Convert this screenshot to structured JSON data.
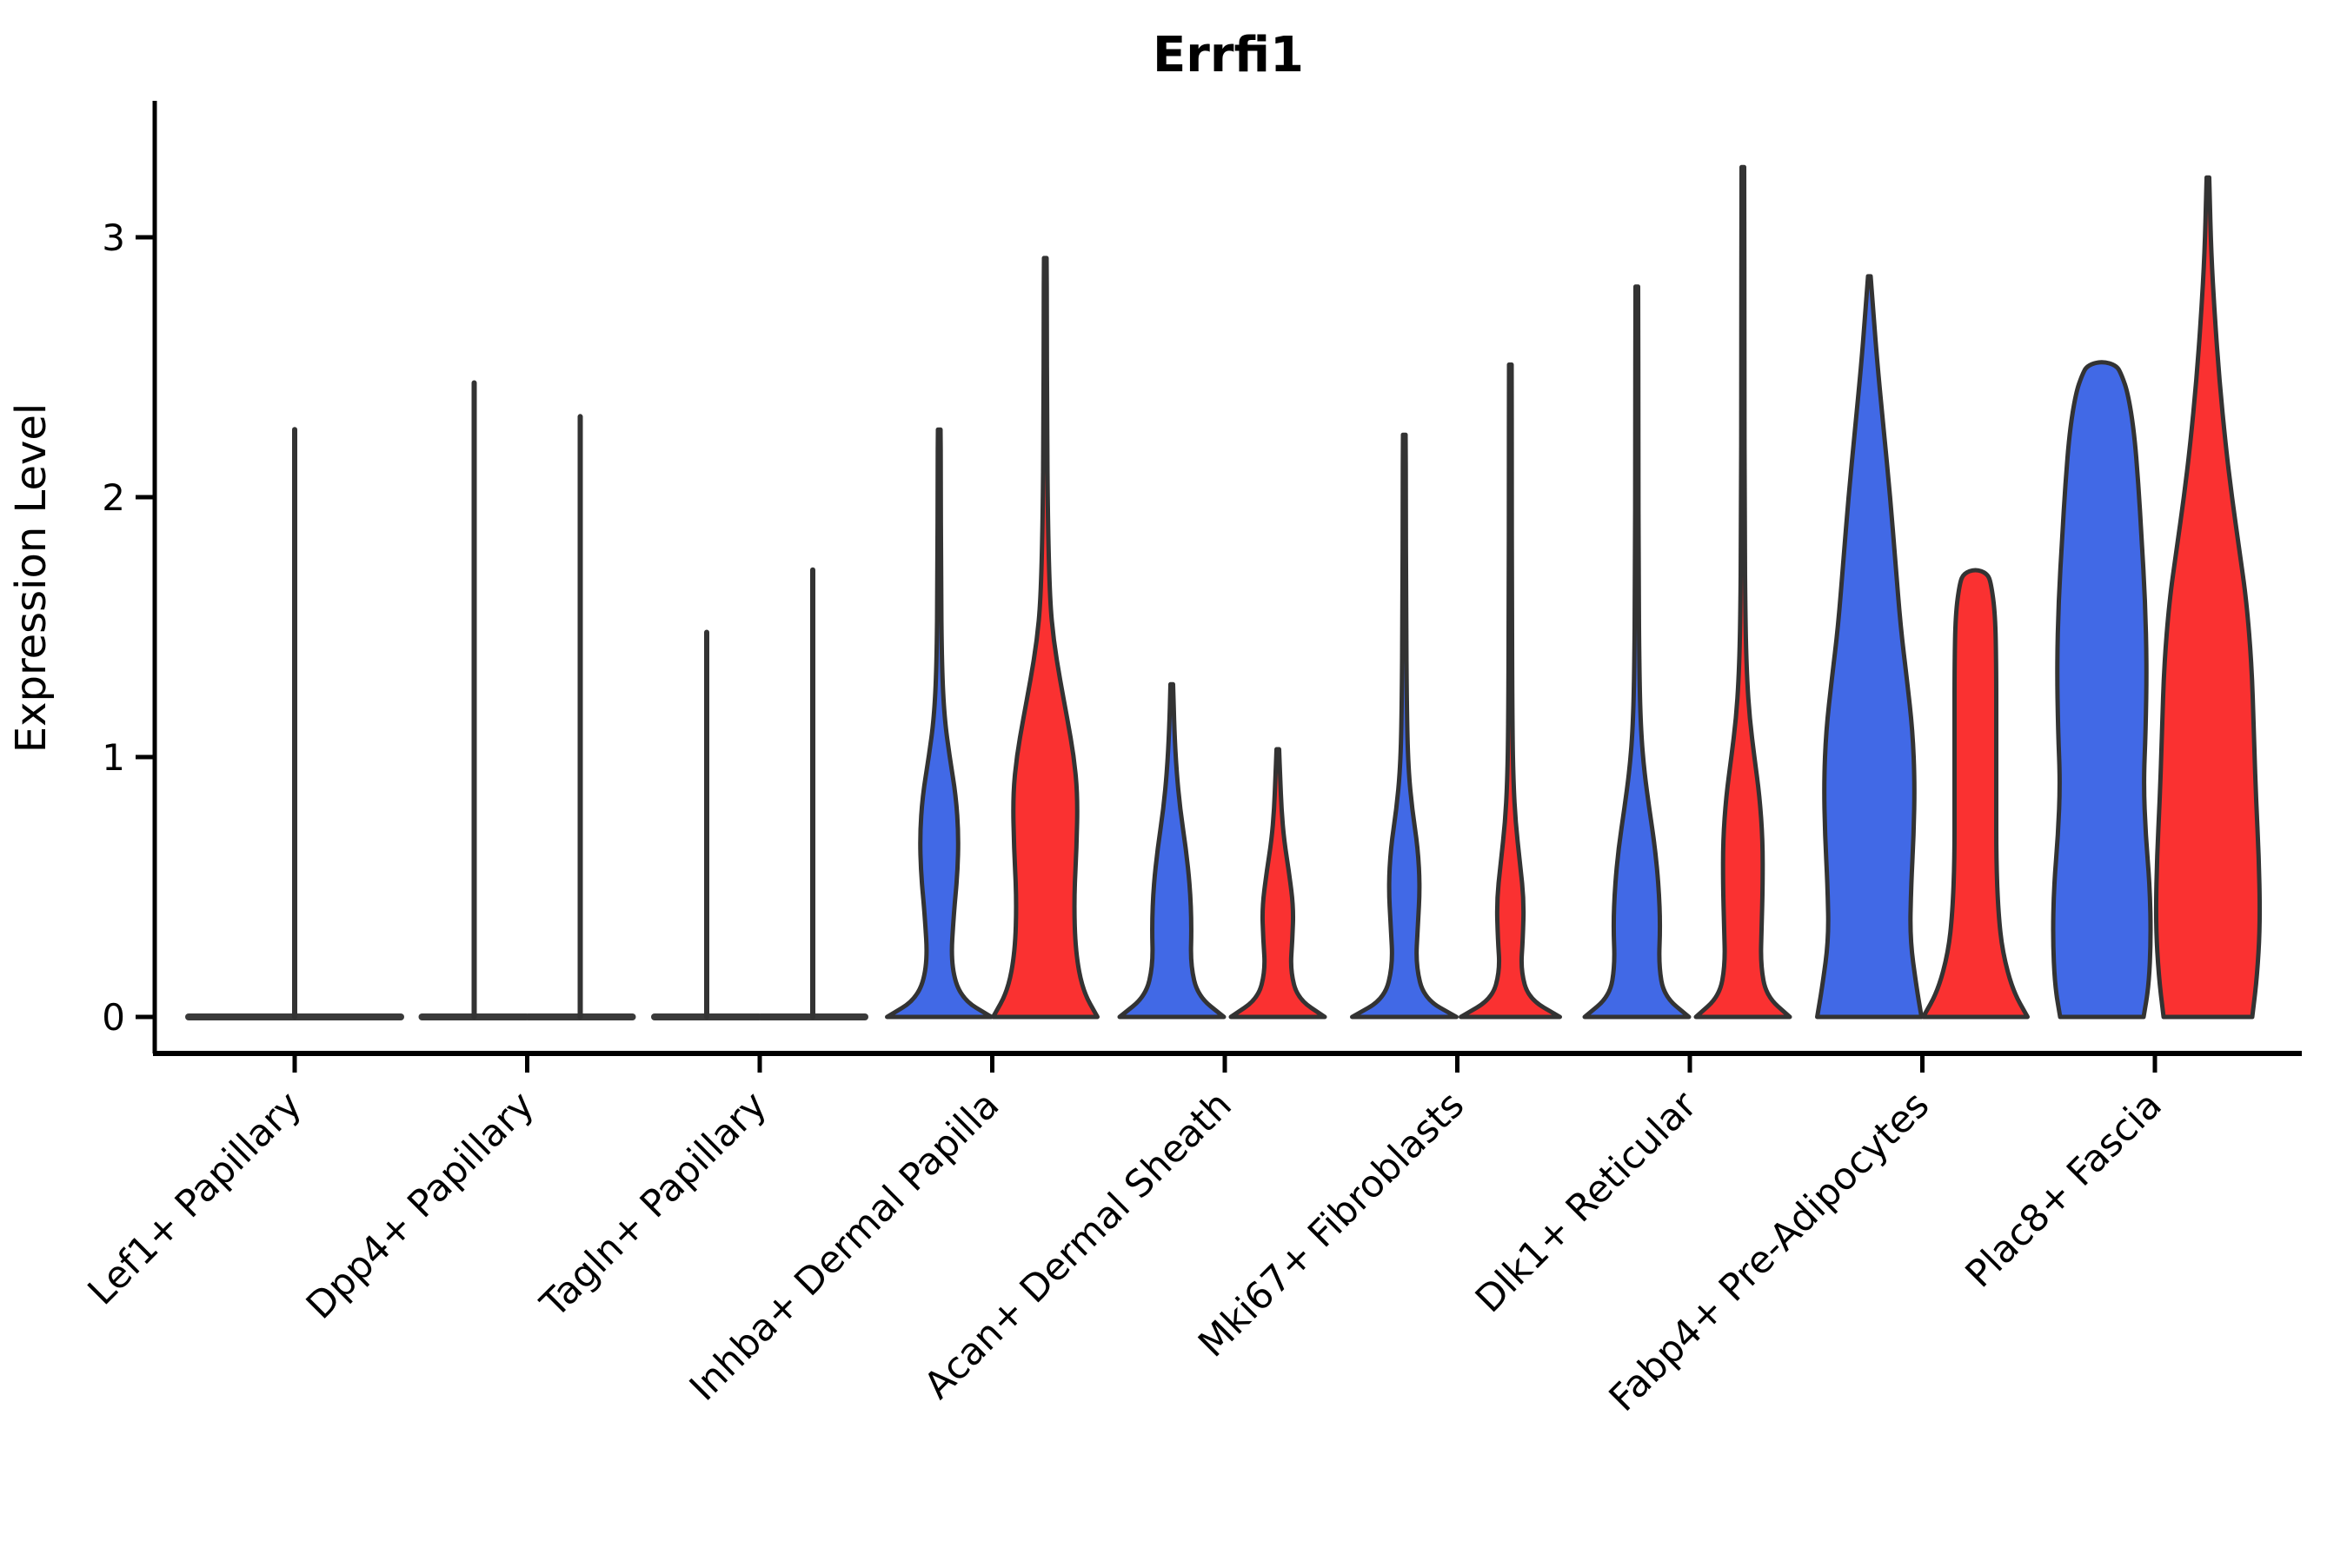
{
  "title": "Errfi1",
  "ylabel": "Expression Level",
  "colors": {
    "blue": "#4169E6",
    "red": "#FA3131",
    "outline": "#333333",
    "flat_line": "#3A3A3A",
    "axis": "#000000",
    "background": "#ffffff"
  },
  "chart_data": {
    "type": "violin",
    "title": "Errfi1",
    "xlabel": "",
    "ylabel": "Expression Level",
    "ylim": [
      -0.15,
      3.45
    ],
    "yticks": [
      "0",
      "1",
      "2",
      "3"
    ],
    "ytick_values": [
      0,
      1,
      2,
      3
    ],
    "x_label_rotation": 45,
    "grid": false,
    "legend": "none",
    "categories": [
      "Lef1+ Papillary",
      "Dpp4+ Papillary",
      "Tagln+ Papillary",
      "Inhba+ Dermal Papilla",
      "Acan+ Dermal Sheath",
      "Mki67+ Fibroblasts",
      "Dlk1+ Reticular",
      "Fabp4+ Pre-Adipocytes",
      "Plac8+ Fascia"
    ],
    "series": [
      {
        "name": "group-blue",
        "color": "#4169E6",
        "max_expression": [
          null,
          2.44,
          1.48,
          2.26,
          1.28,
          2.24,
          2.81,
          2.85,
          2.5
        ]
      },
      {
        "name": "group-red",
        "color": "#FA3131",
        "max_expression": [
          null,
          2.31,
          1.72,
          2.92,
          1.03,
          2.51,
          3.27,
          1.7,
          3.23
        ]
      }
    ],
    "single_violin_note": "Category 1 (Lef1+ Papillary) shows a single centered flat violin with max 2.26",
    "violins": [
      {
        "category": "Lef1+ Papillary",
        "items": [
          {
            "group": "single",
            "flat": true,
            "tip": 2.26,
            "offset": 0,
            "half_width": 122
          }
        ]
      },
      {
        "category": "Dpp4+ Papillary",
        "items": [
          {
            "group": "blue",
            "flat": true,
            "tip": 2.44,
            "offset": -61,
            "half_width": 60
          },
          {
            "group": "red",
            "flat": true,
            "tip": 2.31,
            "offset": 61,
            "half_width": 60
          }
        ]
      },
      {
        "category": "Tagln+ Papillary",
        "items": [
          {
            "group": "blue",
            "flat": true,
            "tip": 1.48,
            "offset": -61,
            "half_width": 60
          },
          {
            "group": "red",
            "flat": true,
            "tip": 1.72,
            "offset": 61,
            "half_width": 60
          }
        ]
      },
      {
        "category": "Inhba+ Dermal Papilla",
        "items": [
          {
            "group": "blue",
            "flat": false,
            "pointed": true,
            "tip": 2.26,
            "offset": -61,
            "half_width": 60,
            "profile": [
              [
                0,
                1
              ],
              [
                0.07,
                0.42
              ],
              [
                0.2,
                0.22
              ],
              [
                0.4,
                0.28
              ],
              [
                0.55,
                0.35
              ],
              [
                0.7,
                0.37
              ],
              [
                0.85,
                0.32
              ],
              [
                1.0,
                0.2
              ],
              [
                1.15,
                0.1
              ],
              [
                1.35,
                0.05
              ],
              [
                1.7,
                0.035
              ],
              [
                2.1,
                0.03
              ]
            ]
          },
          {
            "group": "red",
            "flat": false,
            "pointed": true,
            "tip": 2.92,
            "offset": 61,
            "half_width": 60,
            "profile": [
              [
                0,
                1
              ],
              [
                0.1,
                0.72
              ],
              [
                0.25,
                0.58
              ],
              [
                0.45,
                0.55
              ],
              [
                0.65,
                0.6
              ],
              [
                0.85,
                0.62
              ],
              [
                1.0,
                0.55
              ],
              [
                1.15,
                0.42
              ],
              [
                1.3,
                0.28
              ],
              [
                1.45,
                0.16
              ],
              [
                1.6,
                0.09
              ],
              [
                1.9,
                0.05
              ],
              [
                2.3,
                0.035
              ],
              [
                2.7,
                0.03
              ]
            ]
          }
        ]
      },
      {
        "category": "Acan+ Dermal Sheath",
        "items": [
          {
            "group": "blue",
            "flat": false,
            "pointed": true,
            "tip": 1.28,
            "offset": -61,
            "half_width": 60,
            "profile": [
              [
                0,
                1
              ],
              [
                0.08,
                0.5
              ],
              [
                0.2,
                0.36
              ],
              [
                0.35,
                0.38
              ],
              [
                0.5,
                0.35
              ],
              [
                0.65,
                0.27
              ],
              [
                0.8,
                0.16
              ],
              [
                0.95,
                0.09
              ],
              [
                1.1,
                0.05
              ]
            ]
          },
          {
            "group": "red",
            "flat": false,
            "pointed": true,
            "tip": 1.03,
            "offset": 61,
            "half_width": 60,
            "profile": [
              [
                0,
                0.9
              ],
              [
                0.07,
                0.38
              ],
              [
                0.18,
                0.24
              ],
              [
                0.3,
                0.28
              ],
              [
                0.42,
                0.3
              ],
              [
                0.55,
                0.22
              ],
              [
                0.68,
                0.12
              ],
              [
                0.8,
                0.07
              ],
              [
                0.92,
                0.045
              ]
            ]
          }
        ]
      },
      {
        "category": "Mki67+ Fibroblasts",
        "items": [
          {
            "group": "blue",
            "flat": false,
            "pointed": true,
            "tip": 2.24,
            "offset": -61,
            "half_width": 60,
            "profile": [
              [
                0,
                1
              ],
              [
                0.07,
                0.38
              ],
              [
                0.2,
                0.22
              ],
              [
                0.35,
                0.26
              ],
              [
                0.5,
                0.3
              ],
              [
                0.65,
                0.26
              ],
              [
                0.8,
                0.15
              ],
              [
                0.95,
                0.08
              ],
              [
                1.15,
                0.05
              ],
              [
                1.6,
                0.035
              ],
              [
                2.0,
                0.03
              ]
            ]
          },
          {
            "group": "red",
            "flat": false,
            "pointed": true,
            "tip": 2.51,
            "offset": 61,
            "half_width": 60,
            "profile": [
              [
                0,
                0.95
              ],
              [
                0.07,
                0.35
              ],
              [
                0.18,
                0.2
              ],
              [
                0.3,
                0.24
              ],
              [
                0.45,
                0.26
              ],
              [
                0.6,
                0.18
              ],
              [
                0.75,
                0.1
              ],
              [
                0.9,
                0.06
              ],
              [
                1.1,
                0.04
              ],
              [
                1.6,
                0.03
              ],
              [
                2.1,
                0.028
              ]
            ]
          }
        ]
      },
      {
        "category": "Dlk1+ Reticular",
        "items": [
          {
            "group": "blue",
            "flat": false,
            "pointed": true,
            "tip": 2.81,
            "offset": -61,
            "half_width": 60,
            "profile": [
              [
                0,
                1
              ],
              [
                0.08,
                0.52
              ],
              [
                0.2,
                0.42
              ],
              [
                0.35,
                0.45
              ],
              [
                0.5,
                0.42
              ],
              [
                0.65,
                0.35
              ],
              [
                0.8,
                0.24
              ],
              [
                0.95,
                0.14
              ],
              [
                1.1,
                0.08
              ],
              [
                1.3,
                0.05
              ],
              [
                1.7,
                0.035
              ],
              [
                2.2,
                0.03
              ]
            ]
          },
          {
            "group": "red",
            "flat": false,
            "pointed": true,
            "tip": 3.27,
            "offset": 61,
            "half_width": 60,
            "profile": [
              [
                0,
                0.9
              ],
              [
                0.08,
                0.45
              ],
              [
                0.2,
                0.34
              ],
              [
                0.35,
                0.36
              ],
              [
                0.5,
                0.38
              ],
              [
                0.68,
                0.38
              ],
              [
                0.85,
                0.32
              ],
              [
                1.0,
                0.22
              ],
              [
                1.15,
                0.13
              ],
              [
                1.3,
                0.08
              ],
              [
                1.5,
                0.05
              ],
              [
                1.9,
                0.035
              ],
              [
                2.5,
                0.03
              ]
            ]
          }
        ]
      },
      {
        "category": "Fabp4+ Pre-Adipocytes",
        "items": [
          {
            "group": "blue",
            "flat": false,
            "pointed": true,
            "tip": 2.85,
            "offset": -61,
            "half_width": 60,
            "profile": [
              [
                0,
                1
              ],
              [
                0.12,
                0.9
              ],
              [
                0.3,
                0.78
              ],
              [
                0.5,
                0.8
              ],
              [
                0.7,
                0.85
              ],
              [
                0.9,
                0.87
              ],
              [
                1.1,
                0.83
              ],
              [
                1.3,
                0.72
              ],
              [
                1.5,
                0.6
              ],
              [
                1.75,
                0.5
              ],
              [
                2.0,
                0.4
              ],
              [
                2.25,
                0.28
              ],
              [
                2.5,
                0.16
              ],
              [
                2.7,
                0.08
              ]
            ]
          },
          {
            "group": "red",
            "flat": false,
            "pointed": false,
            "tip": 1.7,
            "offset": 61,
            "half_width": 60,
            "profile": [
              [
                0,
                1
              ],
              [
                0.1,
                0.72
              ],
              [
                0.25,
                0.52
              ],
              [
                0.4,
                0.44
              ],
              [
                0.6,
                0.4
              ],
              [
                0.85,
                0.4
              ],
              [
                1.1,
                0.4
              ],
              [
                1.35,
                0.4
              ],
              [
                1.55,
                0.38
              ],
              [
                1.67,
                0.3
              ]
            ]
          }
        ]
      },
      {
        "category": "Plac8+ Fascia",
        "items": [
          {
            "group": "blue",
            "flat": false,
            "pointed": false,
            "tip": 2.5,
            "offset": -61,
            "half_width": 60,
            "profile": [
              [
                0,
                0.8
              ],
              [
                0.12,
                0.9
              ],
              [
                0.3,
                0.94
              ],
              [
                0.5,
                0.92
              ],
              [
                0.7,
                0.84
              ],
              [
                0.9,
                0.8
              ],
              [
                1.1,
                0.84
              ],
              [
                1.35,
                0.86
              ],
              [
                1.6,
                0.83
              ],
              [
                1.85,
                0.76
              ],
              [
                2.05,
                0.7
              ],
              [
                2.25,
                0.62
              ],
              [
                2.4,
                0.5
              ],
              [
                2.47,
                0.38
              ]
            ]
          },
          {
            "group": "red",
            "flat": false,
            "pointed": true,
            "tip": 3.23,
            "offset": 61,
            "half_width": 60,
            "profile": [
              [
                0,
                0.85
              ],
              [
                0.15,
                0.94
              ],
              [
                0.35,
                1
              ],
              [
                0.6,
                0.98
              ],
              [
                0.85,
                0.92
              ],
              [
                1.1,
                0.88
              ],
              [
                1.35,
                0.84
              ],
              [
                1.6,
                0.74
              ],
              [
                1.8,
                0.6
              ],
              [
                2.0,
                0.46
              ],
              [
                2.2,
                0.34
              ],
              [
                2.45,
                0.22
              ],
              [
                2.7,
                0.13
              ],
              [
                2.95,
                0.06
              ]
            ]
          }
        ]
      }
    ]
  }
}
